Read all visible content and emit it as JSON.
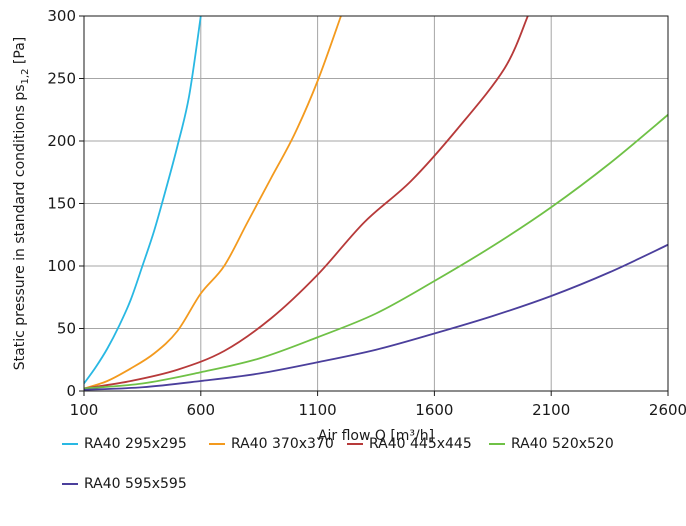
{
  "chart_data": {
    "type": "line",
    "xlabel": "Air flow Q [m³/h]",
    "ylabel_main": "Static pressure in standard conditions ps",
    "ylabel_sub": "1,2",
    "ylabel_unit": " [Pa]",
    "xlim": [
      100,
      2600
    ],
    "ylim": [
      0,
      300
    ],
    "x_ticks": [
      100,
      600,
      1100,
      1600,
      2100,
      2600
    ],
    "y_ticks": [
      0,
      50,
      100,
      150,
      200,
      250,
      300
    ],
    "grid": true,
    "legend_position": "bottom",
    "series": [
      {
        "name": "RA40 295x295",
        "color": "#29b8e3",
        "x": [
          100,
          150,
          200,
          250,
          300,
          350,
          400,
          450,
          500,
          550,
          600
        ],
        "y": [
          6,
          19,
          34,
          52,
          73,
          100,
          128,
          161,
          196,
          236,
          300
        ]
      },
      {
        "name": "RA40 370x370",
        "color": "#f39a1e",
        "x": [
          100,
          200,
          300,
          400,
          500,
          600,
          700,
          800,
          900,
          1000,
          1100,
          1200
        ],
        "y": [
          2,
          8,
          18,
          30,
          48,
          78,
          100,
          135,
          170,
          205,
          248,
          300
        ]
      },
      {
        "name": "RA40 445x445",
        "color": "#b73a3a",
        "x": [
          100,
          300,
          500,
          700,
          900,
          1100,
          1300,
          1500,
          1700,
          1900,
          2000
        ],
        "y": [
          2,
          8,
          17,
          32,
          58,
          93,
          135,
          168,
          210,
          258,
          300
        ]
      },
      {
        "name": "RA40 520x520",
        "color": "#6fc146",
        "x": [
          100,
          350,
          600,
          850,
          1100,
          1350,
          1600,
          1850,
          2100,
          2350,
          2600
        ],
        "y": [
          2,
          6,
          15,
          26,
          43,
          62,
          88,
          116,
          147,
          182,
          221
        ]
      },
      {
        "name": "RA40 595x595",
        "color": "#4b3f9c",
        "x": [
          100,
          350,
          600,
          850,
          1100,
          1350,
          1600,
          1850,
          2100,
          2350,
          2600
        ],
        "y": [
          1,
          3,
          8,
          14,
          23,
          33,
          46,
          60,
          76,
          95,
          117
        ]
      }
    ]
  }
}
